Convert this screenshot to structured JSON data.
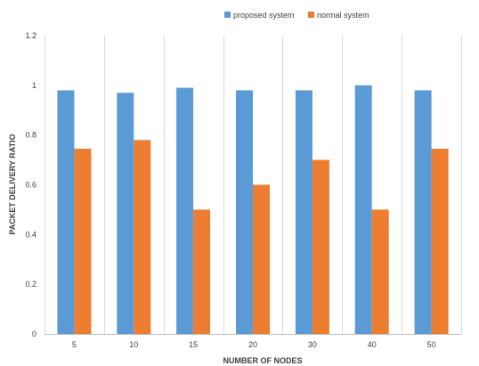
{
  "chart_data": {
    "type": "bar",
    "title": "",
    "xlabel": "NUMBER OF NODES",
    "ylabel": "PACKET DELIVERY RATIO",
    "categories": [
      "5",
      "10",
      "15",
      "20",
      "30",
      "40",
      "50"
    ],
    "series": [
      {
        "name": "proposed system",
        "color": "#5b9bd5",
        "values": [
          0.98,
          0.97,
          0.99,
          0.98,
          0.98,
          1.0,
          0.98
        ]
      },
      {
        "name": "normal system",
        "color": "#ed7d31",
        "values": [
          0.745,
          0.78,
          0.5,
          0.6,
          0.7,
          0.5,
          0.745
        ]
      }
    ],
    "ylim": [
      0,
      1.2
    ],
    "yticks": [
      "0",
      "0.2",
      "0.4",
      "0.6",
      "0.8",
      "1",
      "1.2"
    ],
    "grid": "vertical category separators",
    "legend": "top-center"
  }
}
